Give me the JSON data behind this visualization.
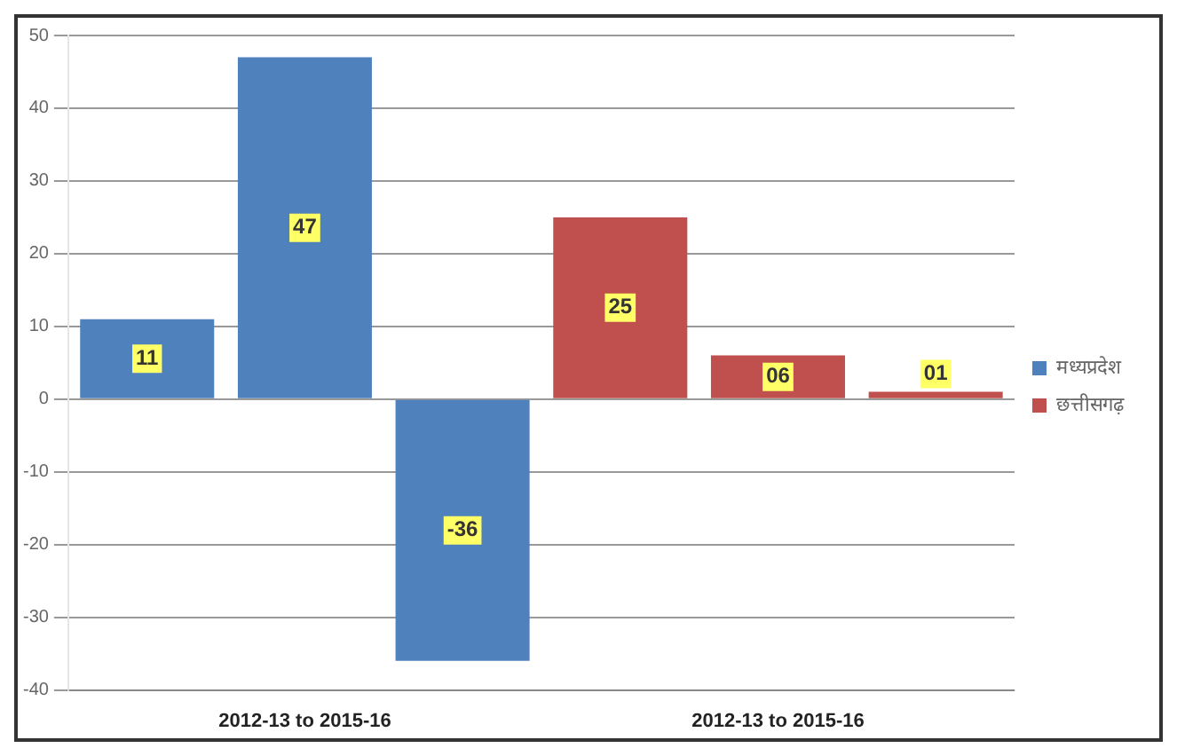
{
  "chart_data": {
    "type": "bar",
    "categories": [
      null,
      "2012-13 to 2015-16",
      null,
      null,
      "2012-13 to 2015-16",
      null
    ],
    "series": [
      {
        "name": "मध्यप्रदेश",
        "color": "#4f81bd",
        "values": [
          11,
          47,
          -36,
          null,
          null,
          null
        ],
        "value_labels": [
          "11",
          "47",
          "-36",
          null,
          null,
          null
        ]
      },
      {
        "name": "छत्तीसगढ़",
        "color": "#c0504d",
        "values": [
          null,
          null,
          null,
          25,
          6,
          1
        ],
        "value_labels": [
          null,
          null,
          null,
          "25",
          "06",
          "01"
        ]
      }
    ],
    "ylim": [
      -40,
      50
    ],
    "yticks": [
      -40,
      -30,
      -20,
      -10,
      0,
      10,
      20,
      30,
      40,
      50
    ],
    "grid": "y",
    "legend": "right"
  }
}
